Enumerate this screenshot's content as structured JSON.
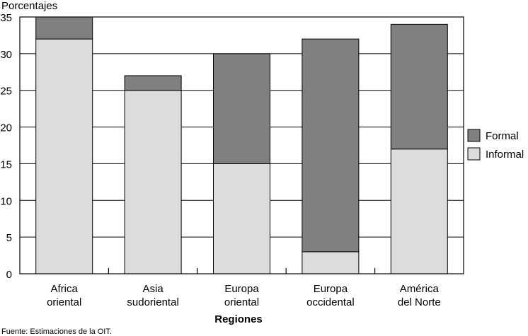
{
  "chart_data": {
    "type": "bar",
    "stacked": true,
    "ylabel": "Porcentajes",
    "xlabel": "Regiones",
    "ylim": [
      0,
      35
    ],
    "yticks": [
      0,
      5,
      10,
      15,
      20,
      25,
      30,
      35
    ],
    "grid": true,
    "legend_position": "right",
    "categories": [
      [
        "Africa",
        "oriental"
      ],
      [
        "Asia",
        "sudoriental"
      ],
      [
        "Europa",
        "oriental"
      ],
      [
        "Europa",
        "occidental"
      ],
      [
        "América",
        "del Norte"
      ]
    ],
    "series": [
      {
        "name": "Informal",
        "color": "#dcdcdc",
        "values": [
          32,
          25,
          15,
          3,
          17
        ]
      },
      {
        "name": "Formal",
        "color": "#808080",
        "values": [
          3,
          2,
          15,
          29,
          17
        ]
      }
    ],
    "legend_order": [
      "Formal",
      "Informal"
    ]
  },
  "source": "Fuente: Estimaciones de la OIT."
}
